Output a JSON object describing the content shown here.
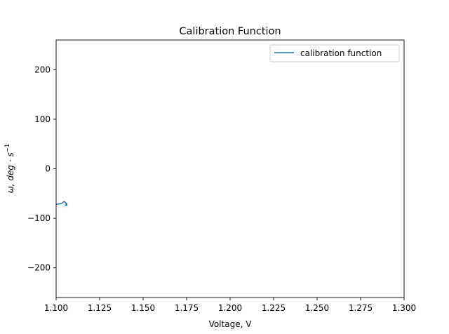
{
  "chart_data": {
    "type": "line",
    "title": "Calibration Function",
    "xlabel": "Voltage, V",
    "ylabel_main": "ω, deg · s",
    "ylabel_sup": "−1",
    "xlim": [
      1.1,
      1.3
    ],
    "ylim": [
      -260,
      260
    ],
    "x_ticks": [
      1.1,
      1.125,
      1.15,
      1.175,
      1.2,
      1.225,
      1.25,
      1.275,
      1.3
    ],
    "x_tick_labels": [
      "1.100",
      "1.125",
      "1.150",
      "1.175",
      "1.200",
      "1.225",
      "1.250",
      "1.275",
      "1.300"
    ],
    "y_ticks": [
      200,
      100,
      0,
      -100,
      -200
    ],
    "y_tick_labels": [
      "200",
      "100",
      "0",
      "−100",
      "−200"
    ],
    "legend_position": "top-right",
    "grid": false,
    "series": [
      {
        "name": "calibration function",
        "color": "#1f77b4",
        "x": [
          1.1,
          1.1015,
          1.103,
          1.104,
          1.1045,
          1.105,
          1.1055,
          1.106,
          1.1058,
          1.1053,
          1.1057,
          1.1062,
          1.106,
          1.1064
        ],
        "y": [
          -72,
          -71,
          -70,
          -68,
          -66,
          -67,
          -69,
          -70,
          -72,
          -74,
          -73,
          -71,
          -74,
          -73
        ]
      }
    ]
  }
}
